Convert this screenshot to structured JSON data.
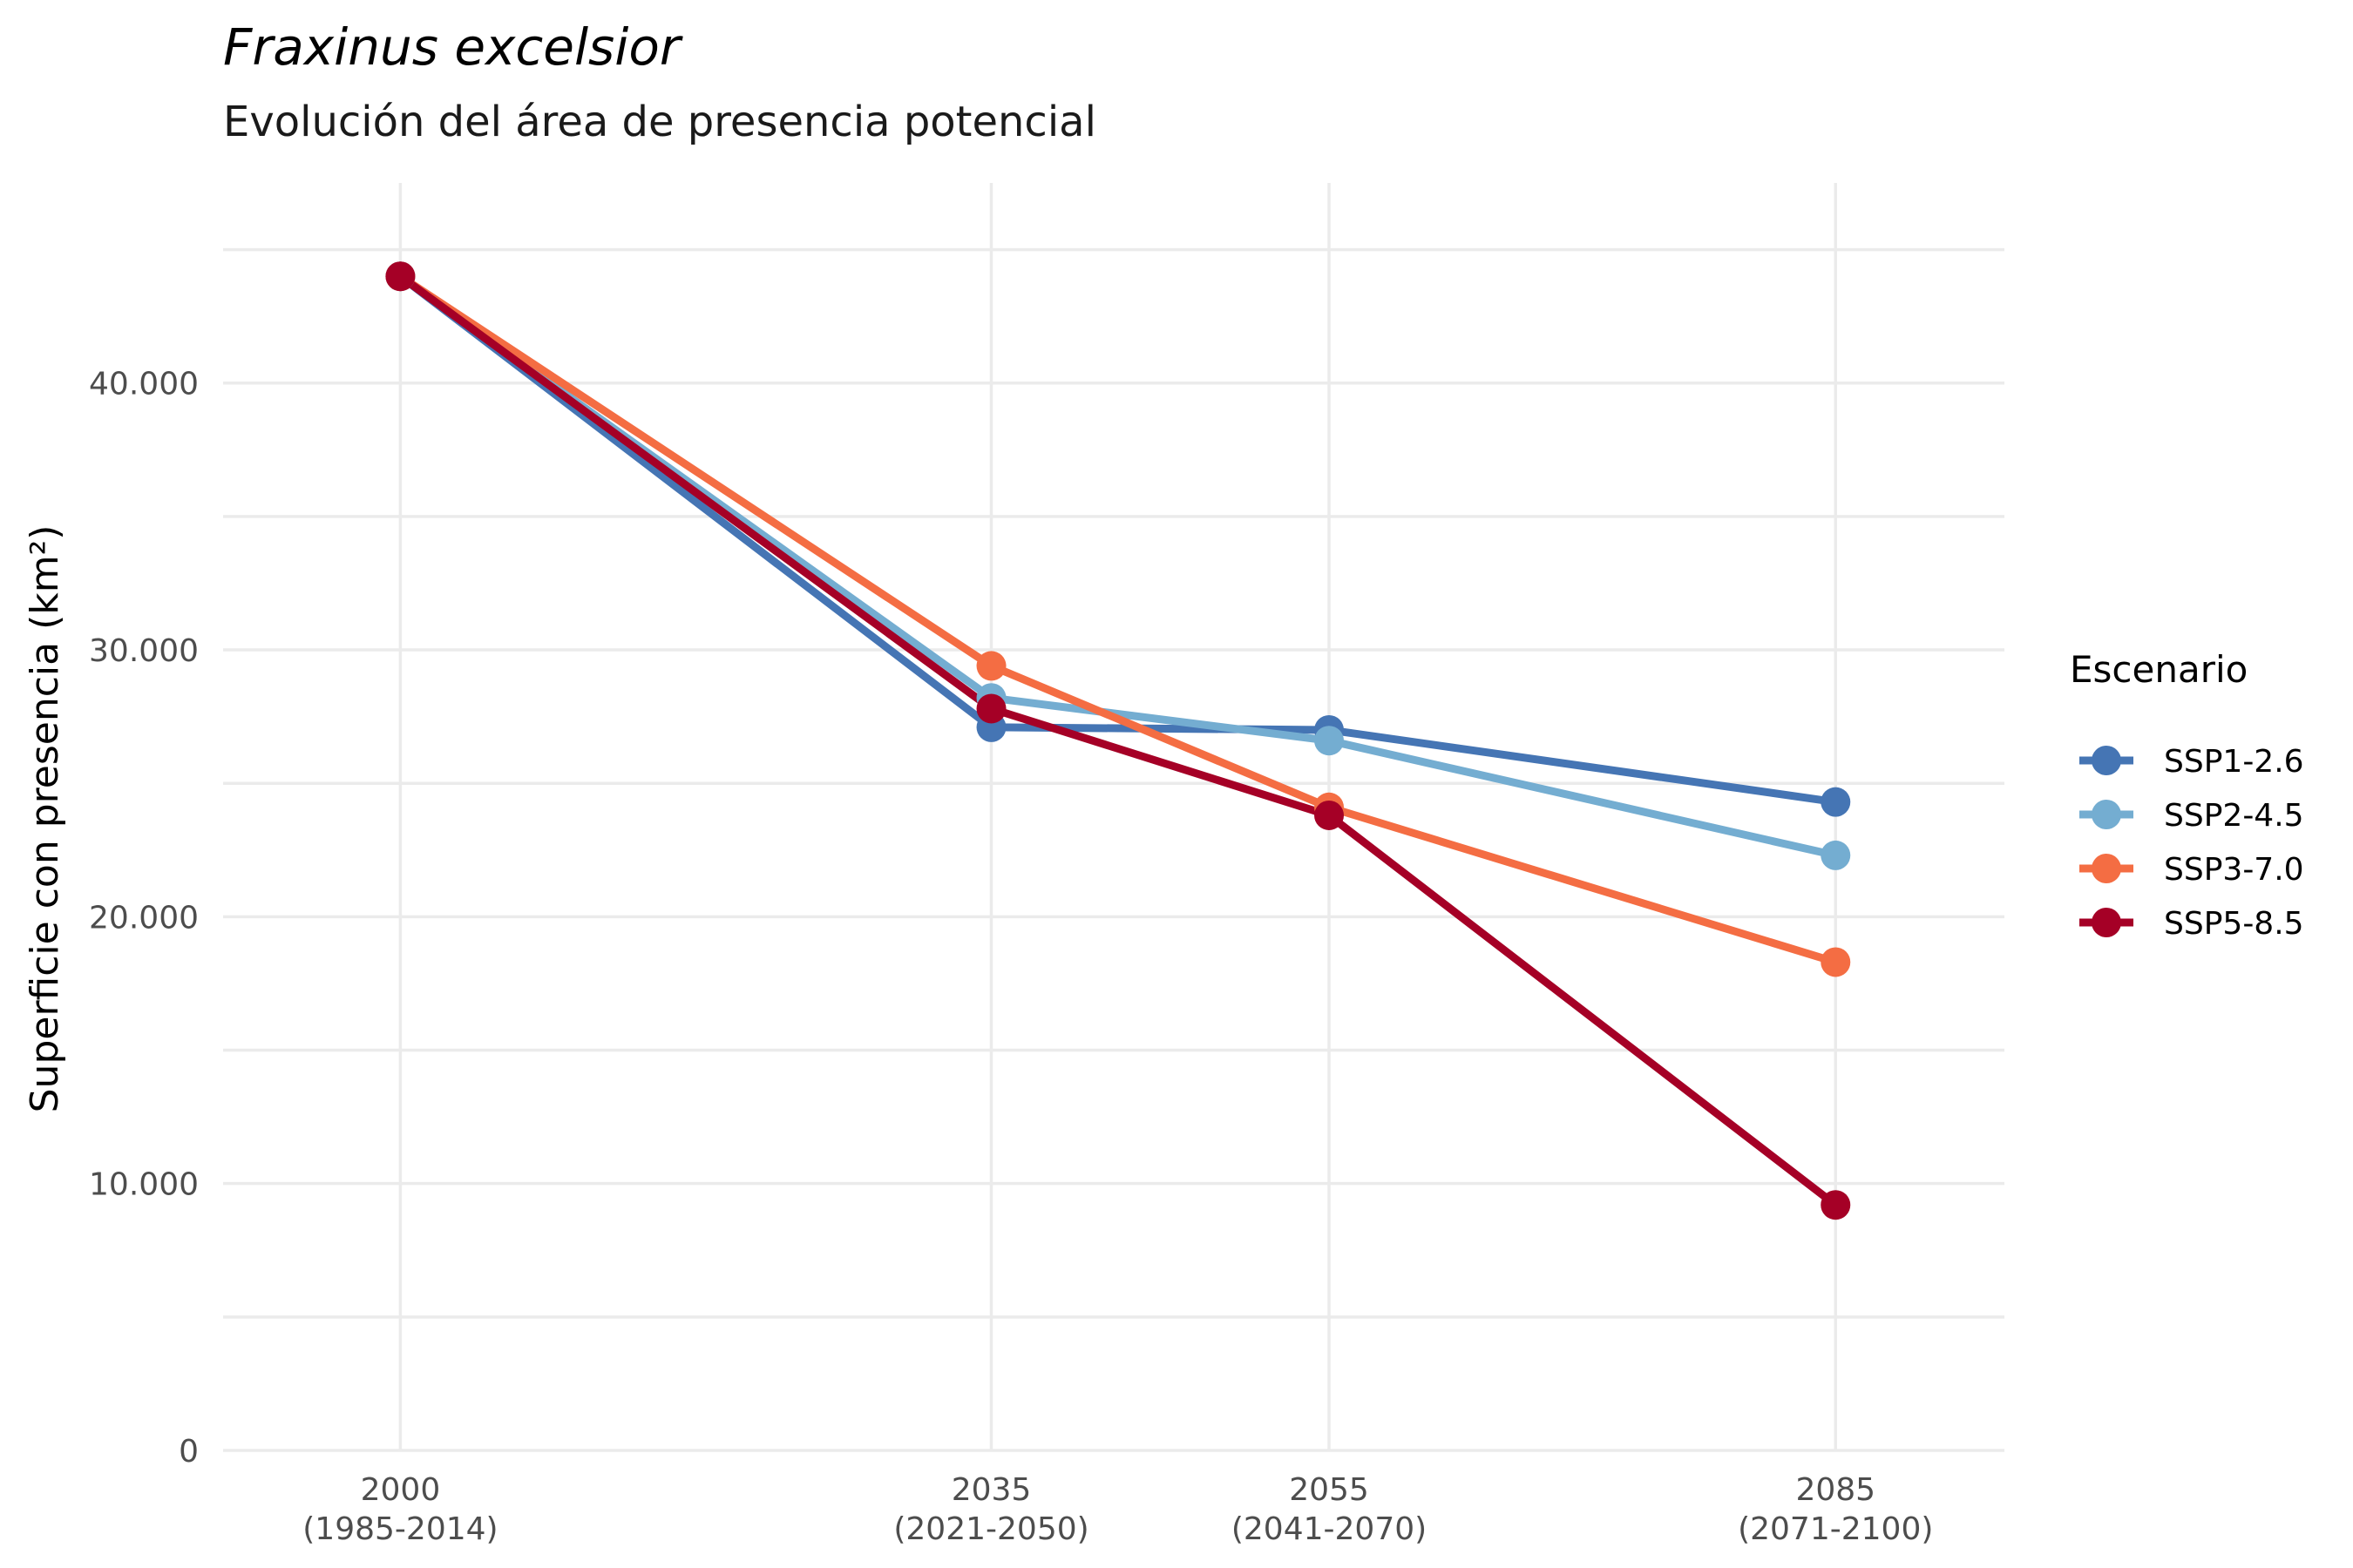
{
  "chart_data": {
    "type": "line",
    "title": "Fraxinus excelsior",
    "subtitle": "Evolución del área de presencia potencial",
    "xlabel": "",
    "ylabel": "Superficie con presencia (km²)",
    "x": [
      2000,
      2035,
      2055,
      2085
    ],
    "x_tick_labels": [
      [
        "2000",
        "(1985-2014)"
      ],
      [
        "2035",
        "(2021-2050)"
      ],
      [
        "2055",
        "(2041-2070)"
      ],
      [
        "2085",
        "(2071-2100)"
      ]
    ],
    "xlim": [
      1989.5,
      2095
    ],
    "ylim": [
      0,
      47500
    ],
    "y_ticks": [
      0,
      10000,
      20000,
      30000,
      40000
    ],
    "y_tick_labels": [
      "0",
      "10.000",
      "20.000",
      "30.000",
      "40.000"
    ],
    "grid": true,
    "legend": {
      "title": "Escenario",
      "position": "right"
    },
    "series": [
      {
        "name": "SSP1-2.6",
        "color": "#4575b4",
        "values": [
          44000,
          27100,
          27000,
          24300
        ]
      },
      {
        "name": "SSP2-4.5",
        "color": "#74add1",
        "values": [
          44000,
          28200,
          26600,
          22300
        ]
      },
      {
        "name": "SSP3-7.0",
        "color": "#f46d43",
        "values": [
          44000,
          29400,
          24100,
          18300
        ]
      },
      {
        "name": "SSP5-8.5",
        "color": "#a50026",
        "values": [
          44000,
          27800,
          23800,
          9200
        ]
      }
    ]
  }
}
